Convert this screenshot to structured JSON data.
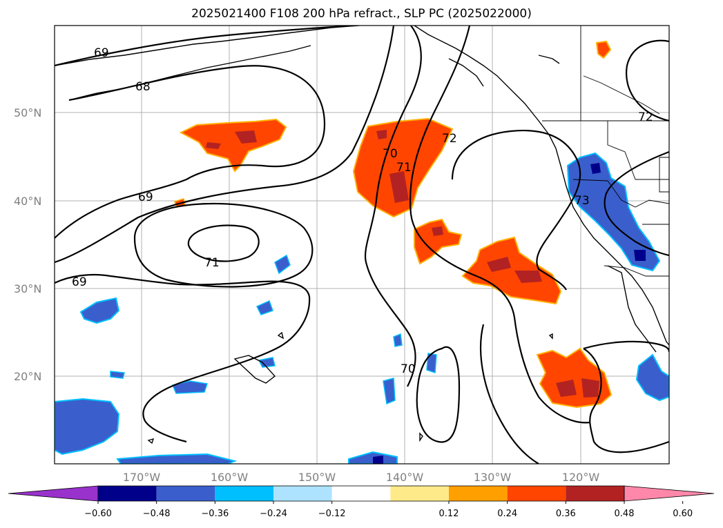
{
  "title": "2025021400 F108 200 hPa refract., SLP PC (2025022000)",
  "map": {
    "lat_labels": [
      "50°N",
      "40°N",
      "30°N",
      "20°N"
    ],
    "lon_labels": [
      "170°W",
      "160°W",
      "150°W",
      "140°W",
      "130°W",
      "120°W"
    ],
    "contour_labels": [
      "69",
      "68",
      "69",
      "71",
      "69",
      "70",
      "71",
      "72",
      "73",
      "72",
      "70"
    ],
    "positive_color_ramp": [
      "#ffea8a",
      "#ff9f00",
      "#ff4500",
      "#b22222"
    ],
    "negative_color_ramp": [
      "#aee3ff",
      "#00bfff",
      "#3a5fcd",
      "#00008b"
    ]
  },
  "colorbar": {
    "labels": [
      "−0.60",
      "−0.48",
      "−0.36",
      "−0.24",
      "−0.12",
      "0.12",
      "0.24",
      "0.36",
      "0.48",
      "0.60"
    ],
    "colors": [
      "#9932cc",
      "#00008b",
      "#3a5fcd",
      "#00bfff",
      "#aee3ff",
      "#ffffff",
      "#ffea8a",
      "#ff9f00",
      "#ff4500",
      "#b22222",
      "#ff88aa"
    ]
  }
}
